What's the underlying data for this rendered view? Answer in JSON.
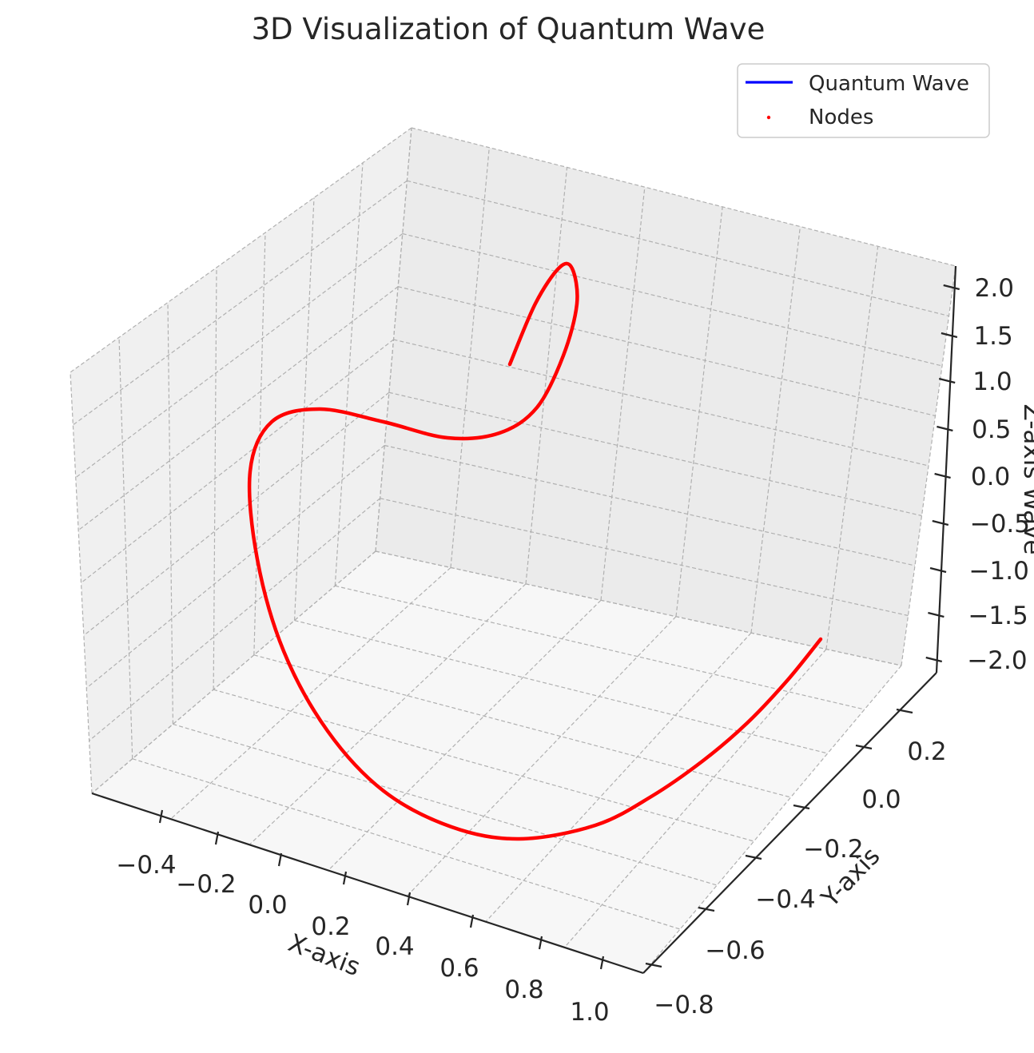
{
  "chart_data": {
    "type": "line",
    "projection": "3d",
    "title": "3D Visualization of Quantum Wave",
    "xlabel": "X-axis",
    "ylabel": "Y-axis",
    "zlabel": "Z-axis Wave",
    "xlim": [
      -0.55,
      1.05
    ],
    "ylim": [
      -0.8,
      0.38
    ],
    "zlim": [
      -2.1,
      2.3
    ],
    "x_ticks": [
      "−0.4",
      "−0.2",
      "0.0",
      "0.2",
      "0.4",
      "0.6",
      "0.8",
      "1.0"
    ],
    "y_ticks": [
      "−0.8",
      "−0.6",
      "−0.4",
      "−0.2",
      "0.0",
      "0.2"
    ],
    "z_ticks": [
      "−2.0",
      "−1.5",
      "−1.0",
      "−0.5",
      "0.0",
      "0.5",
      "1.0",
      "1.5",
      "2.0"
    ],
    "grid": true,
    "legend_position": "top-right",
    "legend": [
      "Quantum Wave",
      "Nodes"
    ],
    "series": [
      {
        "name": "Quantum Wave",
        "kind": "line",
        "color": "#0000ff",
        "points": [
          [
            1.0,
            0.0,
            -2.0
          ],
          [
            0.92,
            -0.18,
            -1.85
          ],
          [
            0.8,
            -0.36,
            -1.65
          ],
          [
            0.64,
            -0.52,
            -1.4
          ],
          [
            0.46,
            -0.64,
            -1.1
          ],
          [
            0.26,
            -0.72,
            -0.78
          ],
          [
            0.06,
            -0.75,
            -0.44
          ],
          [
            -0.12,
            -0.73,
            -0.1
          ],
          [
            -0.28,
            -0.66,
            0.24
          ],
          [
            -0.4,
            -0.55,
            0.56
          ],
          [
            -0.48,
            -0.41,
            0.86
          ],
          [
            -0.5,
            -0.25,
            1.12
          ],
          [
            -0.47,
            -0.09,
            1.34
          ],
          [
            -0.4,
            0.06,
            1.5
          ],
          [
            -0.29,
            0.18,
            1.6
          ],
          [
            -0.16,
            0.26,
            1.66
          ],
          [
            -0.02,
            0.3,
            1.72
          ],
          [
            0.12,
            0.28,
            1.8
          ],
          [
            0.24,
            0.22,
            1.92
          ],
          [
            0.32,
            0.12,
            2.06
          ],
          [
            0.34,
            0.0,
            2.2
          ],
          [
            0.3,
            -0.1,
            2.28
          ],
          [
            0.24,
            -0.14,
            2.22
          ],
          [
            0.19,
            -0.12,
            2.05
          ],
          [
            0.16,
            -0.08,
            1.85
          ]
        ]
      },
      {
        "name": "Nodes",
        "kind": "scatter",
        "color": "#ff0000",
        "points": "same as Quantum Wave (dense markers along the curve)"
      }
    ]
  }
}
